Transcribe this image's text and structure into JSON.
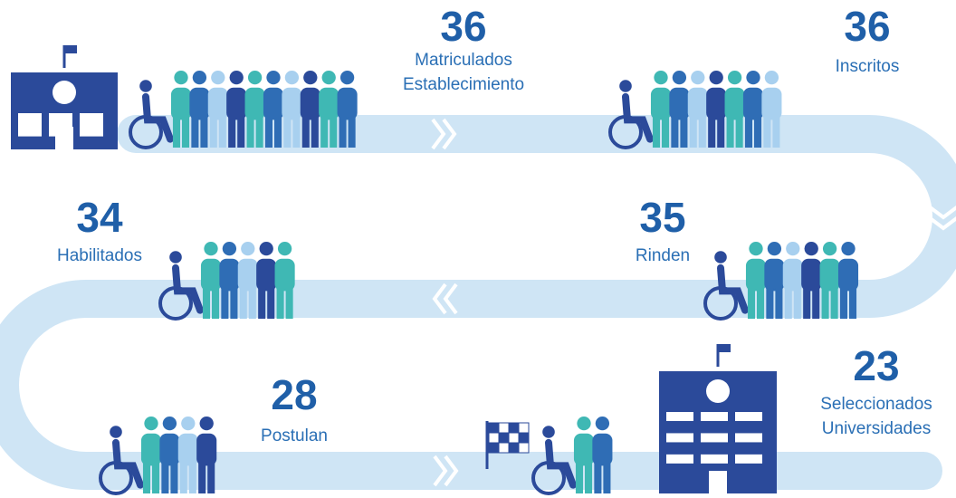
{
  "stages": [
    {
      "value": "36",
      "label": [
        "Matriculados",
        "Establecimiento"
      ]
    },
    {
      "value": "36",
      "label": [
        "Inscritos"
      ]
    },
    {
      "value": "35",
      "label": [
        "Rinden"
      ]
    },
    {
      "value": "34",
      "label": [
        "Habilitados"
      ]
    },
    {
      "value": "28",
      "label": [
        "Postulan"
      ]
    },
    {
      "value": "23",
      "label": [
        "Seleccionados",
        "Universidades"
      ]
    }
  ]
}
